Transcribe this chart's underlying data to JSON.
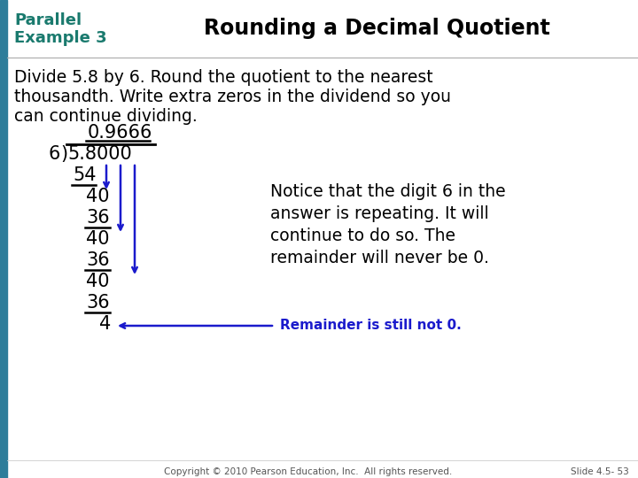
{
  "bg_color": "#ffffff",
  "header_bg": "#cce8e8",
  "teal_color": "#1a7a6e",
  "title_text": "Rounding a Decimal Quotient",
  "label_line1": "Parallel",
  "label_line2": "Example 3",
  "body_line1": "Divide 5.8 by 6. Round the quotient to the nearest",
  "body_line2": "thousandth. Write extra zeros in the dividend so you",
  "body_line3": "can continue dividing.",
  "notice_line1": "Notice that the digit 6 in the",
  "notice_line2": "answer is repeating. It will",
  "notice_line3": "continue to do so. The",
  "notice_line4": "remainder will never be 0.",
  "remainder_text": "Remainder is still not 0.",
  "copyright_text": "Copyright © 2010 Pearson Education, Inc.  All rights reserved.",
  "slide_text": "Slide 4.5- 53",
  "blue_color": "#1a1acc",
  "teal_bar_color": "#2e7d9a",
  "black": "#000000"
}
